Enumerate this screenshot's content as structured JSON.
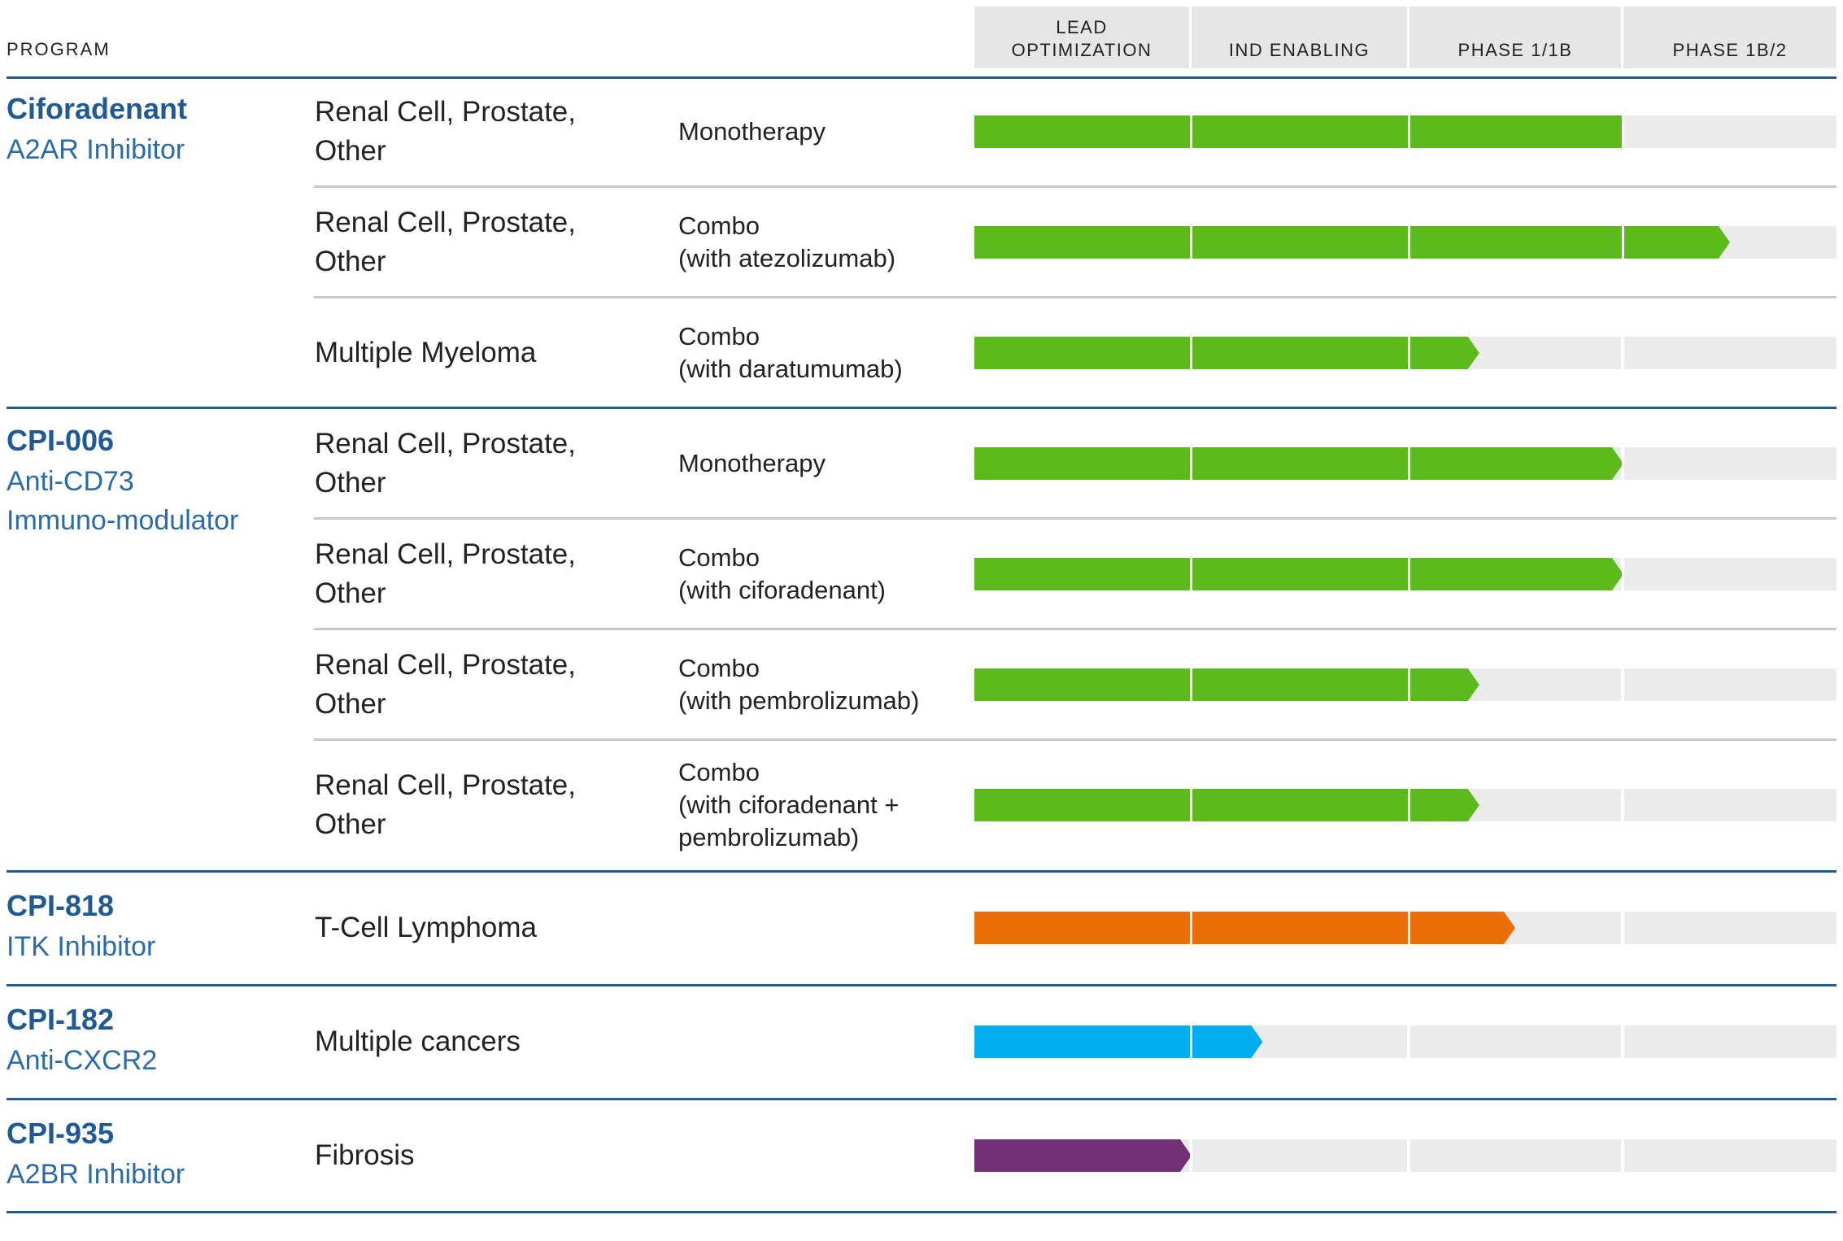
{
  "header": {
    "program_label": "PROGRAM",
    "phases": [
      "LEAD\nOPTIMIZATION",
      "IND ENABLING",
      "PHASE 1/1B",
      "PHASE 1B/2"
    ]
  },
  "colors": {
    "rule_blue": "#1f5a96",
    "track_grey": "#ebebeb",
    "green": "#5cba1d",
    "orange": "#ec6c06",
    "blue": "#00aeef",
    "purple": "#733079"
  },
  "programs": [
    {
      "name": "Ciforadenant",
      "subtitle": [
        "A2AR Inhibitor"
      ]
    },
    {
      "name": "CPI-006",
      "subtitle": [
        "Anti-CD73",
        "Immuno-modulator"
      ]
    },
    {
      "name": "CPI-818",
      "subtitle": [
        "ITK Inhibitor"
      ]
    },
    {
      "name": "CPI-182",
      "subtitle": [
        "Anti-CXCR2"
      ]
    },
    {
      "name": "CPI-935",
      "subtitle": [
        "A2BR Inhibitor"
      ]
    }
  ],
  "chart_data": {
    "type": "bar",
    "title": "",
    "stages": [
      "LEAD OPTIMIZATION",
      "IND ENABLING",
      "PHASE 1/1B",
      "PHASE 1B/2"
    ],
    "rows": [
      {
        "program": "Ciforadenant",
        "indication": "Renal Cell, Prostate,\nOther",
        "therapy": "Monotherapy",
        "progress": 3.0,
        "arrow": false,
        "color": "green"
      },
      {
        "program": "Ciforadenant",
        "indication": "Renal Cell, Prostate,\nOther",
        "therapy": "Combo\n(with atezolizumab)",
        "progress": 3.5,
        "arrow": true,
        "color": "green"
      },
      {
        "program": "Ciforadenant",
        "indication": "Multiple Myeloma",
        "therapy": "Combo\n(with daratumumab)",
        "progress": 2.33,
        "arrow": true,
        "color": "green"
      },
      {
        "program": "CPI-006",
        "indication": "Renal Cell, Prostate,\nOther",
        "therapy": "Monotherapy",
        "progress": 3.0,
        "arrow": true,
        "color": "green"
      },
      {
        "program": "CPI-006",
        "indication": "Renal Cell, Prostate,\nOther",
        "therapy": "Combo\n(with ciforadenant)",
        "progress": 3.0,
        "arrow": true,
        "color": "green"
      },
      {
        "program": "CPI-006",
        "indication": "Renal Cell, Prostate,\nOther",
        "therapy": "Combo\n(with pembrolizumab)",
        "progress": 2.33,
        "arrow": true,
        "color": "green"
      },
      {
        "program": "CPI-006",
        "indication": "Renal Cell, Prostate,\nOther",
        "therapy": "Combo\n(with ciforadenant +\npembrolizumab)",
        "progress": 2.33,
        "arrow": true,
        "color": "green"
      },
      {
        "program": "CPI-818",
        "indication": "T-Cell Lymphoma",
        "therapy": "",
        "progress": 2.5,
        "arrow": true,
        "color": "orange"
      },
      {
        "program": "CPI-182",
        "indication": "Multiple cancers",
        "therapy": "",
        "progress": 1.33,
        "arrow": true,
        "color": "blue"
      },
      {
        "program": "CPI-935",
        "indication": "Fibrosis",
        "therapy": "",
        "progress": 1.0,
        "arrow": true,
        "color": "purple"
      }
    ]
  }
}
